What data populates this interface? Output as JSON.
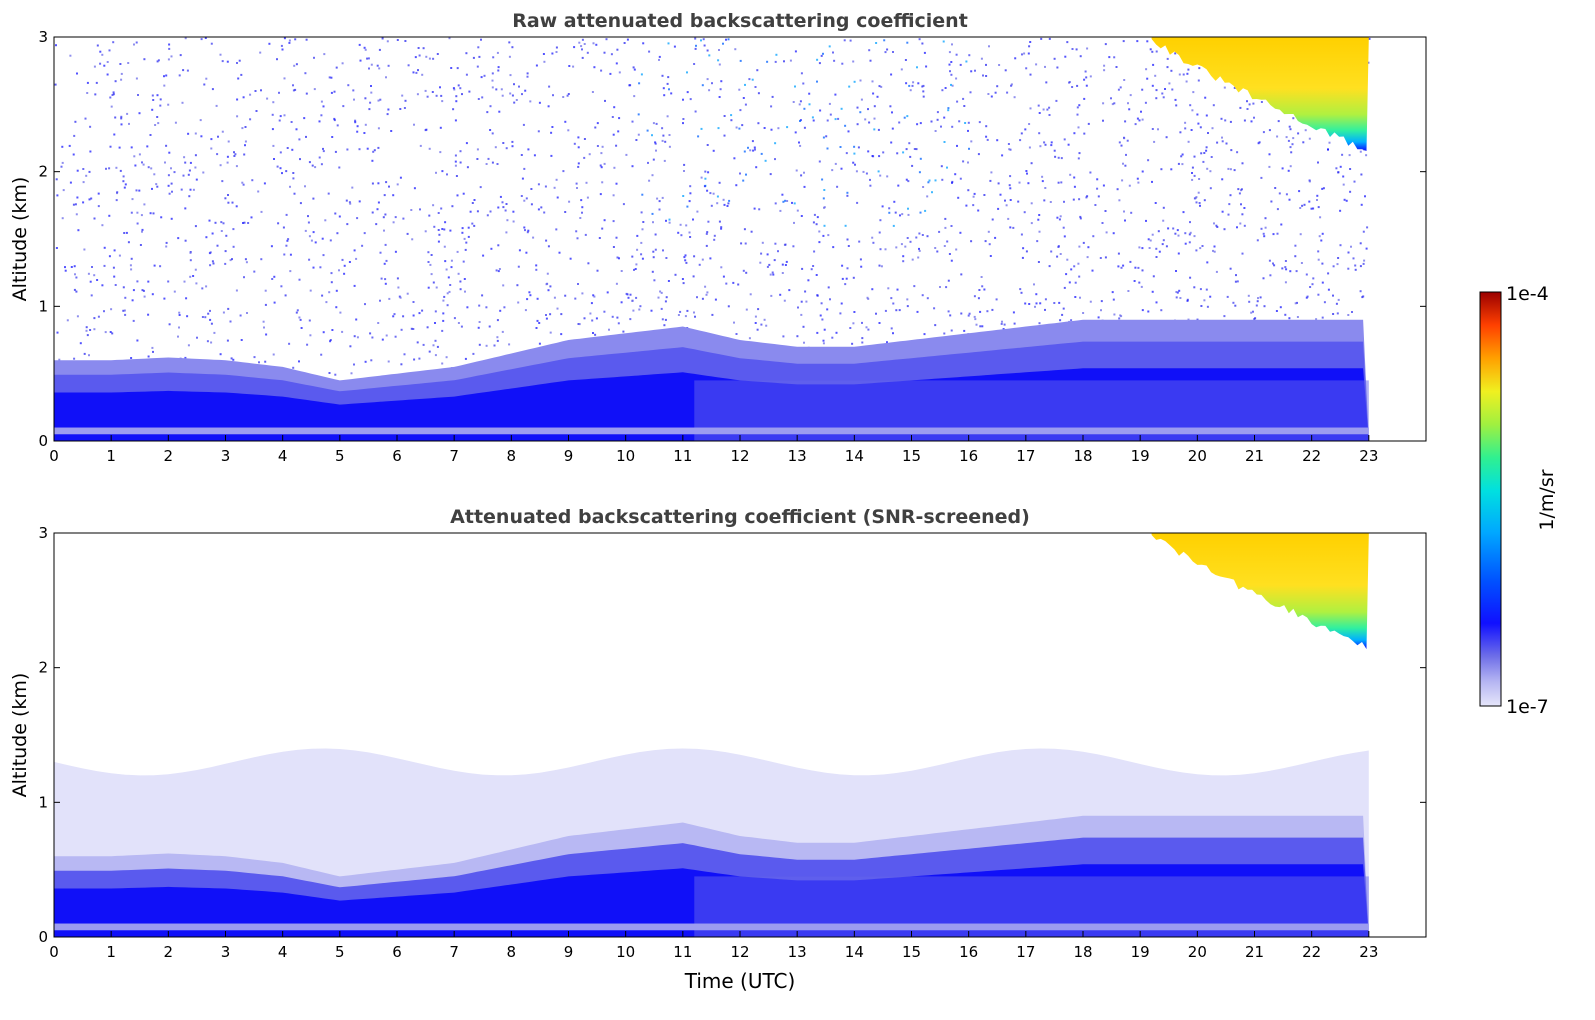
{
  "chart_data": [
    {
      "type": "heatmap",
      "title": "Raw attenuated backscattering coefficient",
      "xlabel": "",
      "ylabel": "Altitude (km)",
      "xlim": [
        0,
        24
      ],
      "ylim": [
        0,
        3
      ],
      "xticks": [
        "0",
        "1",
        "2",
        "3",
        "4",
        "5",
        "6",
        "7",
        "8",
        "9",
        "10",
        "11",
        "12",
        "13",
        "14",
        "15",
        "16",
        "17",
        "18",
        "19",
        "20",
        "21",
        "22",
        "23"
      ],
      "yticks": [
        "0",
        "1",
        "2",
        "3"
      ],
      "data_time_range_utc": [
        0,
        23
      ],
      "features": [
        {
          "kind": "aerosol_boundary_layer",
          "start_utc": 0,
          "end_utc": 23,
          "top_km_by_hour": [
            0.6,
            0.6,
            0.62,
            0.6,
            0.55,
            0.45,
            0.5,
            0.55,
            0.65,
            0.75,
            0.8,
            0.85,
            0.75,
            0.7,
            0.7,
            0.75,
            0.8,
            0.85,
            0.9,
            0.9,
            0.9,
            0.9,
            0.9,
            0.9
          ]
        },
        {
          "kind": "cloud",
          "start_utc": 19.2,
          "end_utc": 23,
          "base_km_start": 3.0,
          "base_km_end": 2.15
        }
      ],
      "background": "noisy signal above boundary layer"
    },
    {
      "type": "heatmap",
      "title": "Attenuated backscattering coefficient (SNR-screened)",
      "xlabel": "Time (UTC)",
      "ylabel": "Altitude (km)",
      "xlim": [
        0,
        24
      ],
      "ylim": [
        0,
        3
      ],
      "xticks": [
        "0",
        "1",
        "2",
        "3",
        "4",
        "5",
        "6",
        "7",
        "8",
        "9",
        "10",
        "11",
        "12",
        "13",
        "14",
        "15",
        "16",
        "17",
        "18",
        "19",
        "20",
        "21",
        "22",
        "23"
      ],
      "yticks": [
        "0",
        "1",
        "2",
        "3"
      ],
      "data_time_range_utc": [
        0,
        23
      ],
      "features": [
        {
          "kind": "aerosol_boundary_layer",
          "start_utc": 0,
          "end_utc": 23,
          "top_km_by_hour": [
            0.6,
            0.6,
            0.62,
            0.6,
            0.55,
            0.45,
            0.5,
            0.55,
            0.65,
            0.75,
            0.8,
            0.85,
            0.75,
            0.7,
            0.7,
            0.75,
            0.8,
            0.85,
            0.9,
            0.9,
            0.9,
            0.9,
            0.9,
            0.9
          ]
        },
        {
          "kind": "residual_layer",
          "top_km": 1.3
        },
        {
          "kind": "cloud",
          "start_utc": 19.2,
          "end_utc": 23,
          "base_km_start": 3.0,
          "base_km_end": 2.15
        }
      ],
      "background": "screened (blank)"
    }
  ],
  "colorbar": {
    "label": "1/m/sr",
    "max_label": "1e-4",
    "min_label": "1e-7",
    "range": [
      1e-07,
      0.0001
    ],
    "scale": "log",
    "colors": [
      "#e6e6fa",
      "#c8c8f5",
      "#a0a0f0",
      "#7070e8",
      "#3c3cf0",
      "#0a0aff",
      "#0040ff",
      "#0080ff",
      "#00c0ff",
      "#00e6c8",
      "#40f080",
      "#a0f040",
      "#e6f020",
      "#ffe000",
      "#ffa000",
      "#ff5000",
      "#e01010",
      "#9a0000"
    ]
  }
}
